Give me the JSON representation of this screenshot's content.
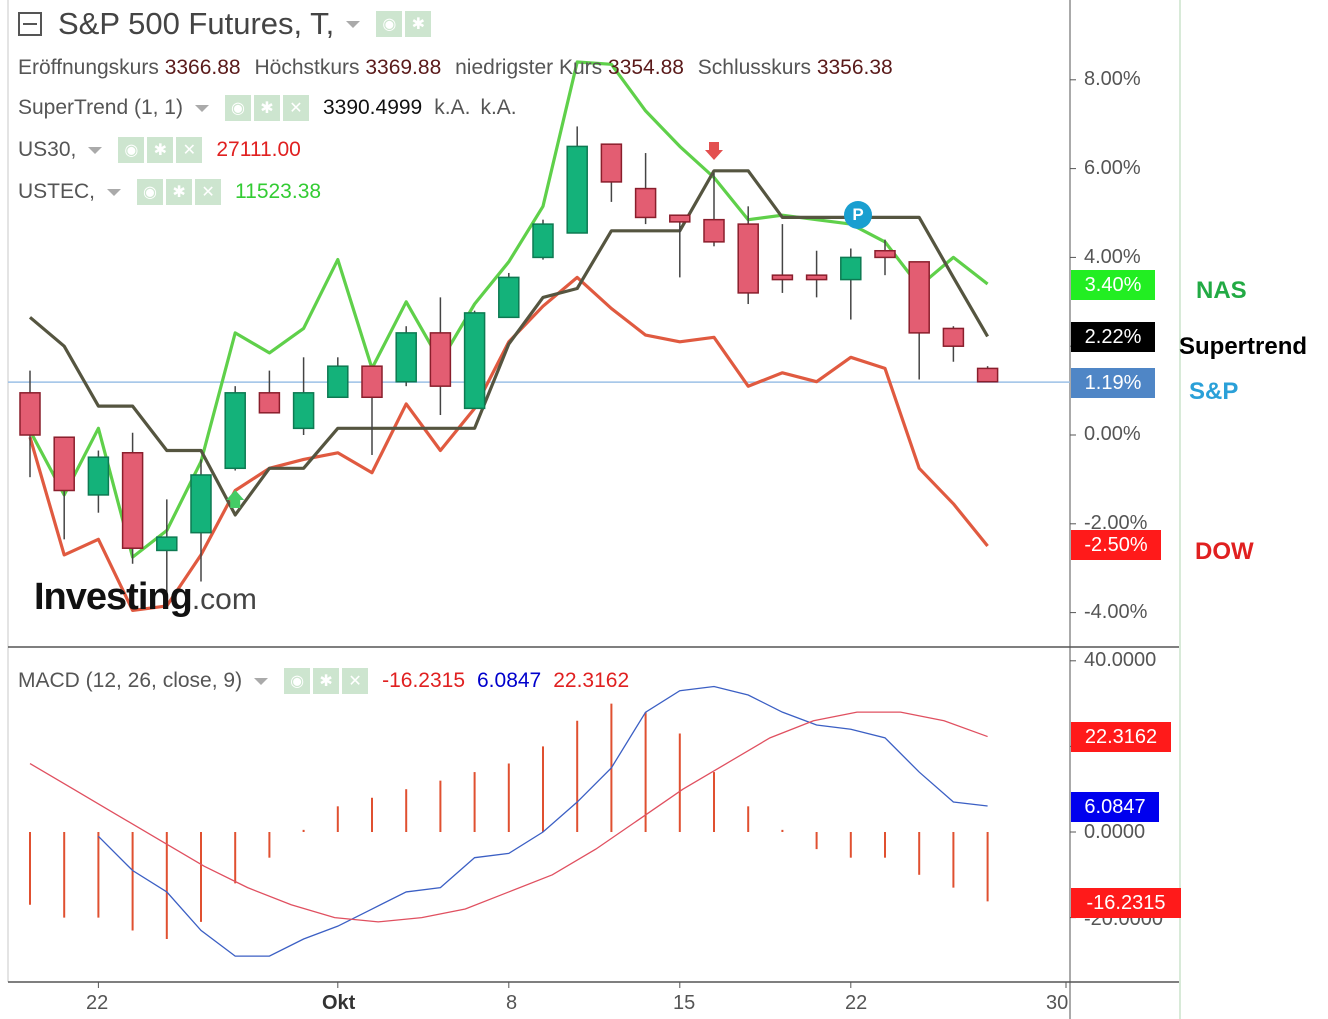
{
  "header": {
    "title": "S&P 500 Futures, T,",
    "ohlc": [
      {
        "label": "Eröffnungskurs",
        "value": "3366.88"
      },
      {
        "label": "Höchstkurs",
        "value": "3369.88"
      },
      {
        "label": "niedrigster Kurs",
        "value": "3354.88"
      },
      {
        "label": "Schlusskurs",
        "value": "3356.38"
      }
    ]
  },
  "indicators": {
    "supertrend": {
      "label": "SuperTrend (1, 1)",
      "value": "3390.4999",
      "extra1": "k.A.",
      "extra2": "k.A."
    },
    "us30": {
      "label": "US30,",
      "value": "27111.00",
      "color": "#e02020"
    },
    "ustec": {
      "label": "USTEC,",
      "value": "11523.38",
      "color": "#33cc33"
    },
    "macd": {
      "label": "MACD (12, 26, close, 9)",
      "hist": "-16.2315",
      "macd": "6.0847",
      "signal": "22.3162"
    }
  },
  "logo": {
    "brand": "Investing",
    "suffix": ".com"
  },
  "badges": {
    "nas": {
      "text": "3.40%",
      "color": "#22ee22"
    },
    "supertrend": {
      "text": "2.22%",
      "color": "#000000"
    },
    "sp": {
      "text": "1.19%",
      "color": "#4f86c6"
    },
    "dow": {
      "text": "-2.50%",
      "color": "#ff1a1a"
    },
    "macd_signal": {
      "text": "22.3162",
      "color": "#ff1a1a"
    },
    "macd_line": {
      "text": "6.0847",
      "color": "#0000ee"
    },
    "macd_hist": {
      "text": "-16.2315",
      "color": "#ff1a1a"
    }
  },
  "side_labels": {
    "nas": {
      "text": "NAS",
      "color": "#22aa44"
    },
    "supertrend": {
      "text": "Supertrend",
      "color": "#000000"
    },
    "sp": {
      "text": "S&P",
      "color": "#2aa0d8"
    },
    "dow": {
      "text": "DOW",
      "color": "#e02020"
    }
  },
  "markers": {
    "pivot": "P"
  },
  "chart_data": {
    "type": "candlestick",
    "x_axis": {
      "ticks": [
        {
          "label": "22",
          "index": 2
        },
        {
          "label": "Okt",
          "index": 9
        },
        {
          "label": "8",
          "index": 14
        },
        {
          "label": "15",
          "index": 19
        },
        {
          "label": "22",
          "index": 24
        },
        {
          "label": "30",
          "index": 30
        }
      ]
    },
    "price_panel": {
      "unit": "%",
      "ylim": [
        -5.0,
        9.6
      ],
      "ticks": [
        "8.00%",
        "6.00%",
        "4.00%",
        "2.00%",
        "0.00%",
        "-2.00%",
        "-4.00%"
      ],
      "reference_line": 1.19,
      "candles": [
        {
          "o": 0.95,
          "h": 1.45,
          "l": -0.95,
          "c": 0.0
        },
        {
          "o": -0.05,
          "h": -0.05,
          "l": -2.35,
          "c": -1.25
        },
        {
          "o": -1.35,
          "h": -0.35,
          "l": -1.75,
          "c": -0.5
        },
        {
          "o": -0.4,
          "h": 0.05,
          "l": -2.9,
          "c": -2.55
        },
        {
          "o": -2.6,
          "h": -1.45,
          "l": -3.6,
          "c": -2.3
        },
        {
          "o": -2.2,
          "h": -0.55,
          "l": -3.3,
          "c": -0.9
        },
        {
          "o": -0.75,
          "h": 1.1,
          "l": -0.8,
          "c": 0.95
        },
        {
          "o": 0.95,
          "h": 1.45,
          "l": 0.5,
          "c": 0.5
        },
        {
          "o": 0.15,
          "h": 1.75,
          "l": -0.0,
          "c": 0.95
        },
        {
          "o": 0.85,
          "h": 1.75,
          "l": 0.85,
          "c": 1.55
        },
        {
          "o": 1.55,
          "h": 1.55,
          "l": -0.45,
          "c": 0.85
        },
        {
          "o": 1.2,
          "h": 2.45,
          "l": 1.1,
          "c": 2.3
        },
        {
          "o": 2.3,
          "h": 3.1,
          "l": 0.45,
          "c": 1.1
        },
        {
          "o": 0.6,
          "h": 2.8,
          "l": 0.6,
          "c": 2.75
        },
        {
          "o": 2.65,
          "h": 3.65,
          "l": 2.65,
          "c": 3.55
        },
        {
          "o": 4.0,
          "h": 4.85,
          "l": 3.95,
          "c": 4.75
        },
        {
          "o": 4.55,
          "h": 6.95,
          "l": 4.55,
          "c": 6.5
        },
        {
          "o": 6.55,
          "h": 6.55,
          "l": 5.25,
          "c": 5.7
        },
        {
          "o": 5.55,
          "h": 6.35,
          "l": 4.75,
          "c": 4.9
        },
        {
          "o": 4.95,
          "h": 4.95,
          "l": 3.55,
          "c": 4.8
        },
        {
          "o": 4.85,
          "h": 5.9,
          "l": 4.25,
          "c": 4.35
        },
        {
          "o": 4.75,
          "h": 5.15,
          "l": 2.95,
          "c": 3.2
        },
        {
          "o": 3.6,
          "h": 4.75,
          "l": 3.2,
          "c": 3.5
        },
        {
          "o": 3.6,
          "h": 4.15,
          "l": 3.1,
          "c": 3.5
        },
        {
          "o": 3.5,
          "h": 4.2,
          "l": 2.6,
          "c": 4.0
        },
        {
          "o": 4.15,
          "h": 4.4,
          "l": 3.6,
          "c": 4.0
        },
        {
          "o": 3.9,
          "h": 3.9,
          "l": 1.25,
          "c": 2.3
        },
        {
          "o": 2.4,
          "h": 2.45,
          "l": 1.65,
          "c": 2.0
        },
        {
          "o": 1.5,
          "h": 1.55,
          "l": 1.2,
          "c": 1.2
        }
      ],
      "series": [
        {
          "name": "USTEC",
          "color": "#5fd04a",
          "values": [
            0.1,
            -1.35,
            0.15,
            -2.75,
            -2.15,
            -0.6,
            2.3,
            1.85,
            2.4,
            3.95,
            1.5,
            3.0,
            1.65,
            2.95,
            3.9,
            5.15,
            8.4,
            8.35,
            7.3,
            6.5,
            5.8,
            4.85,
            4.95,
            4.85,
            4.75,
            4.35,
            3.35,
            4.0,
            3.4
          ]
        },
        {
          "name": "US30",
          "color": "#e05a40",
          "values": [
            -0.05,
            -2.7,
            -2.35,
            -3.95,
            -3.85,
            -2.7,
            -1.25,
            -0.75,
            -0.55,
            -0.4,
            -0.85,
            0.7,
            -0.35,
            0.6,
            2.1,
            2.9,
            3.55,
            2.85,
            2.25,
            2.1,
            2.2,
            1.1,
            1.4,
            1.2,
            1.75,
            1.5,
            -0.75,
            -1.55,
            -2.5
          ]
        },
        {
          "name": "SuperTrend",
          "color": "#555540",
          "values": [
            2.65,
            2.0,
            0.65,
            0.65,
            -0.35,
            -0.35,
            -1.8,
            -0.75,
            -0.75,
            0.15,
            0.15,
            0.15,
            0.15,
            0.15,
            2.05,
            3.1,
            3.3,
            4.6,
            4.6,
            4.6,
            5.95,
            5.95,
            4.9,
            4.9,
            4.9,
            4.9,
            4.9,
            3.55,
            2.22
          ]
        }
      ]
    },
    "macd_panel": {
      "ylim": [
        -34.0,
        40.0
      ],
      "ticks": [
        "40.0000",
        "20.0000",
        "0.0000",
        "-20.0000"
      ],
      "histogram": [
        -17,
        -20,
        -20,
        -23,
        -25,
        -21,
        -12,
        -6,
        0.5,
        6,
        8,
        10,
        12,
        14,
        16,
        20,
        26,
        30,
        28,
        23,
        14,
        6,
        0.5,
        -4,
        -6,
        -6,
        -10,
        -13,
        -16.2
      ],
      "macd": [
        -1,
        -9,
        -14,
        -23,
        -29,
        -29,
        -25,
        -22,
        -18,
        -14,
        -13,
        -6,
        -5,
        0,
        7,
        15,
        28,
        33,
        34,
        32,
        28,
        25,
        24,
        22,
        14,
        7,
        6.08
      ],
      "signal": [
        16,
        10,
        4,
        -2,
        -8,
        -13,
        -17,
        -20,
        -21,
        -20,
        -18,
        -14,
        -10,
        -4,
        3,
        10,
        16,
        22,
        26,
        28,
        28,
        26,
        22.3
      ]
    }
  }
}
